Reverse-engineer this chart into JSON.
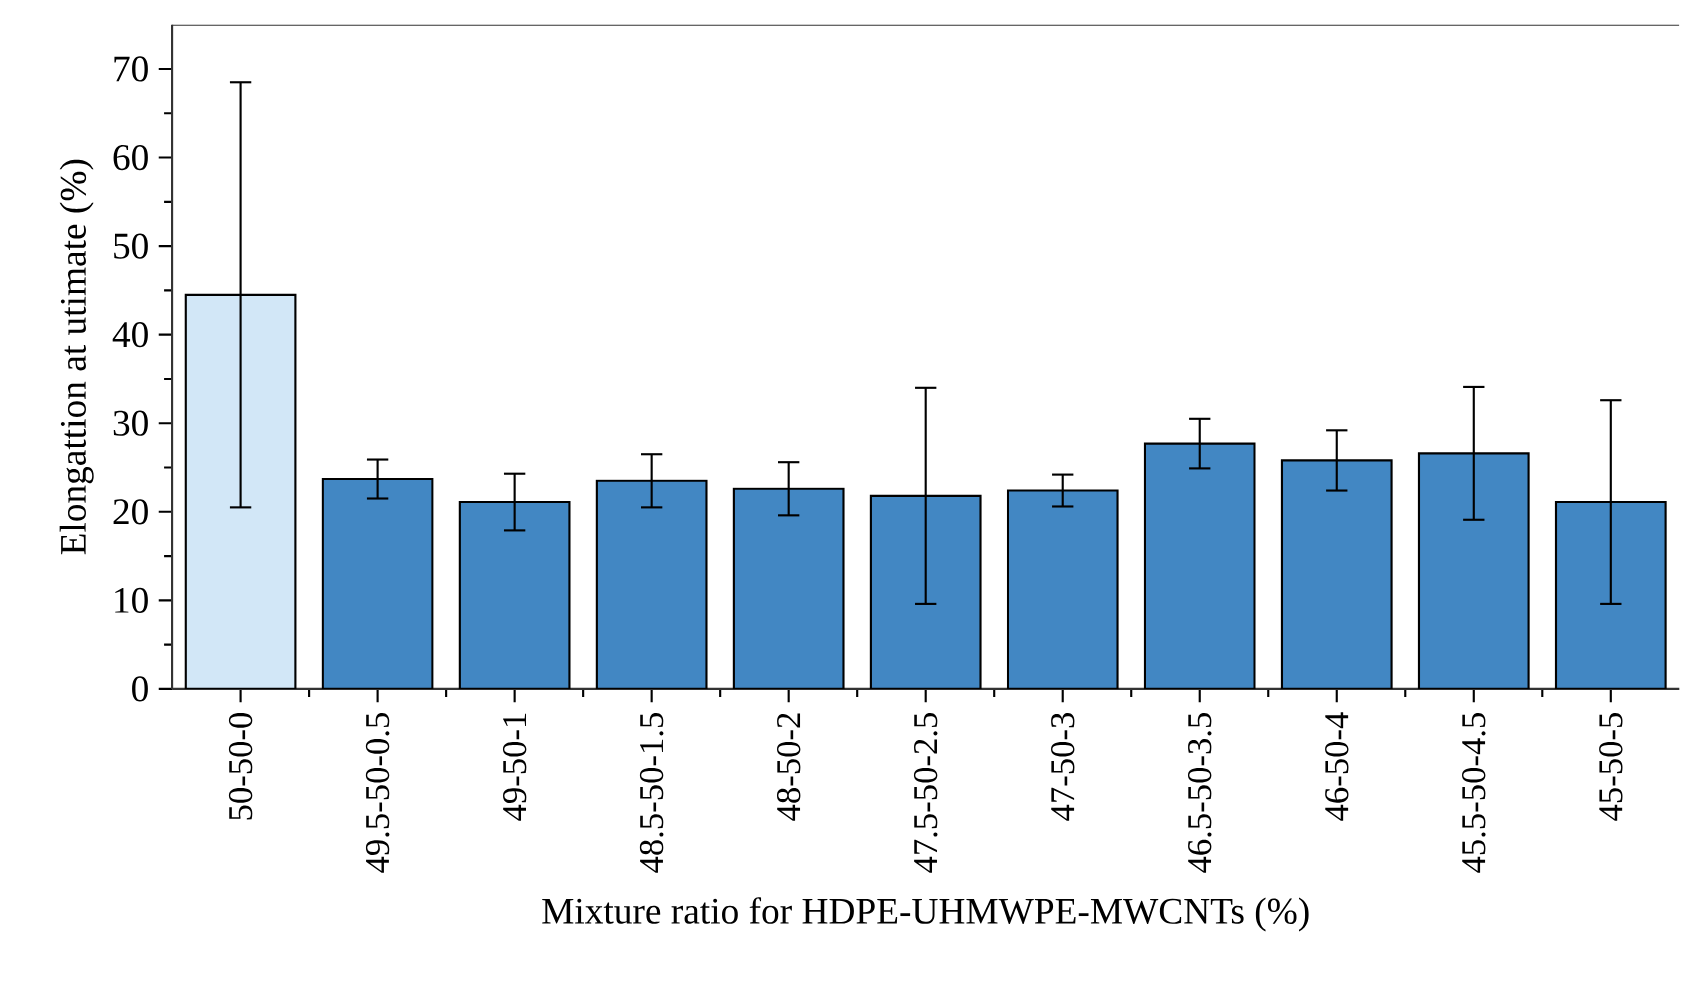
{
  "chart_data": {
    "type": "bar",
    "xlabel": "Mixture ratio for HDPE-UHMWPE-MWCNTs (%)",
    "ylabel": "Elongattion at utimate (%)",
    "categories": [
      "50-50-0",
      "49.5-50-0.5",
      "49-50-1",
      "48.5-50-1.5",
      "48-50-2",
      "47.5-50-2.5",
      "47-50-3",
      "46.5-50-3.5",
      "46-50-4",
      "45.5-50-4.5",
      "45-50-5"
    ],
    "values": [
      44.5,
      23.7,
      21.1,
      23.5,
      22.6,
      21.8,
      22.4,
      27.7,
      25.8,
      26.6,
      21.1
    ],
    "errors": [
      24,
      2.2,
      3.2,
      3,
      3,
      12.2,
      1.8,
      2.8,
      3.4,
      7.5,
      11.5
    ],
    "colors": [
      "#d2e7f7",
      "#4287c3",
      "#4287c3",
      "#4287c3",
      "#4287c3",
      "#4287c3",
      "#4287c3",
      "#4287c3",
      "#4287c3",
      "#4287c3",
      "#4287c3"
    ],
    "ylim": [
      0,
      75
    ],
    "yticks": [
      0,
      10,
      20,
      30,
      40,
      50,
      60,
      70
    ],
    "grid": false
  }
}
